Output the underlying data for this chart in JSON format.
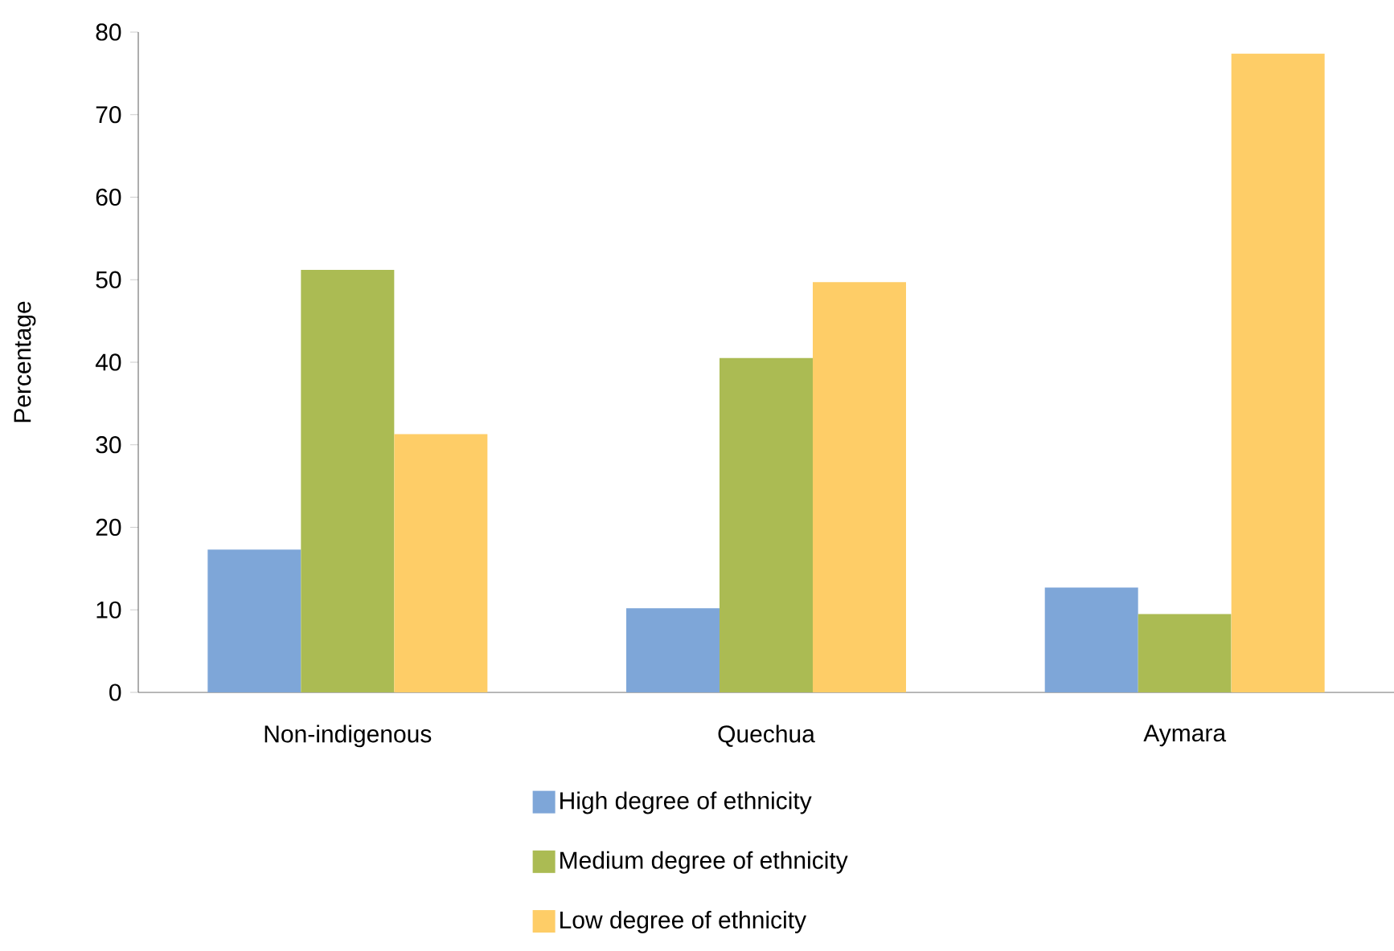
{
  "chart_data": {
    "type": "bar",
    "ylabel": "Percentage",
    "categories": [
      "Non-indigenous",
      "Quechua",
      "Aymara"
    ],
    "series": [
      {
        "name": "High degree of ethnicity",
        "color": "#7ea6d8",
        "values": [
          17.3,
          10.2,
          12.7
        ]
      },
      {
        "name": "Medium degree of ethnicity",
        "color": "#abbb53",
        "values": [
          51.2,
          40.5,
          9.5
        ]
      },
      {
        "name": "Low degree of ethnicity",
        "color": "#fecd67",
        "values": [
          31.3,
          49.7,
          77.4
        ]
      }
    ],
    "ylim": [
      0,
      80
    ],
    "yticks": [
      0,
      10,
      20,
      30,
      40,
      50,
      60,
      70,
      80
    ],
    "grid": false,
    "legend": "bottom"
  }
}
